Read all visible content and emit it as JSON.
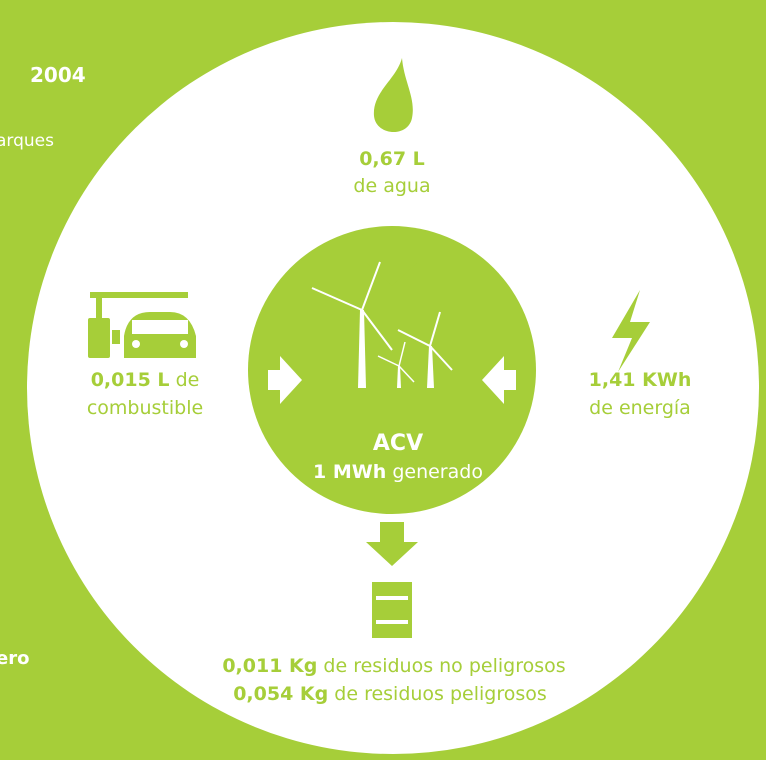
{
  "left_fragments": {
    "heading": "2004",
    "line": "arques",
    "bottom": "ero"
  },
  "water": {
    "amount": "0,67 L",
    "label": "de agua"
  },
  "fuel": {
    "amount": "0,015 L",
    "label_inline": "de",
    "label": "combustible"
  },
  "energy": {
    "amount": "1,41 KWh",
    "label": "de energía"
  },
  "center": {
    "title": "ACV",
    "amount": "1 MWh",
    "label": "generado"
  },
  "waste": {
    "non_hazardous_amount": "0,011 Kg",
    "non_hazardous_label": "de residuos no peligrosos",
    "hazardous_amount": "0,054 Kg",
    "hazardous_label": "de residuos peligrosos"
  }
}
